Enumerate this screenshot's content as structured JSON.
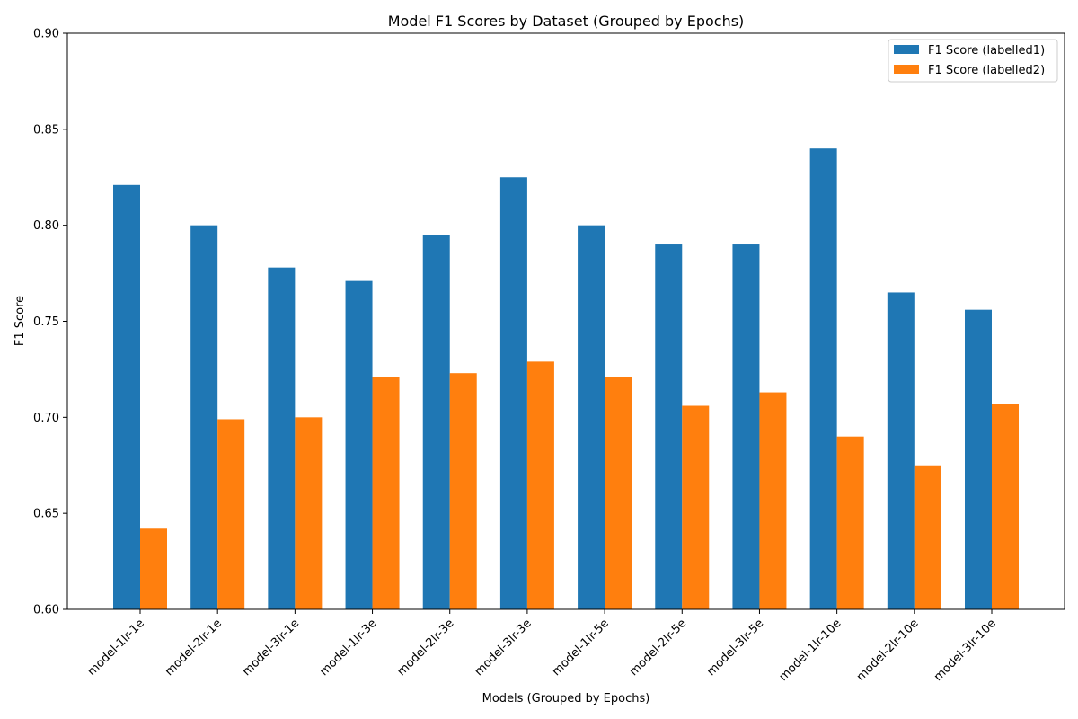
{
  "chart_data": {
    "type": "bar",
    "title": "Model F1 Scores by Dataset (Grouped by Epochs)",
    "xlabel": "Models (Grouped by Epochs)",
    "ylabel": "F1 Score",
    "ylim": [
      0.6,
      0.9
    ],
    "yticks": [
      "0.60",
      "0.65",
      "0.70",
      "0.75",
      "0.80",
      "0.85",
      "0.90"
    ],
    "ytick_values": [
      0.6,
      0.65,
      0.7,
      0.75,
      0.8,
      0.85,
      0.9
    ],
    "categories": [
      "model-1lr-1e",
      "model-2lr-1e",
      "model-3lr-1e",
      "model-1lr-3e",
      "model-2lr-3e",
      "model-3lr-3e",
      "model-1lr-5e",
      "model-2lr-5e",
      "model-3lr-5e",
      "model-1lr-10e",
      "model-2lr-10e",
      "model-3lr-10e"
    ],
    "series": [
      {
        "name": "F1 Score (labelled1)",
        "color": "#1f77b4",
        "values": [
          0.821,
          0.8,
          0.778,
          0.771,
          0.795,
          0.825,
          0.8,
          0.79,
          0.79,
          0.84,
          0.765,
          0.756
        ]
      },
      {
        "name": "F1 Score (labelled2)",
        "color": "#ff7f0e",
        "values": [
          0.642,
          0.699,
          0.7,
          0.721,
          0.723,
          0.729,
          0.721,
          0.706,
          0.713,
          0.69,
          0.675,
          0.707
        ]
      }
    ],
    "legend_position": "top-right",
    "grid": false
  }
}
